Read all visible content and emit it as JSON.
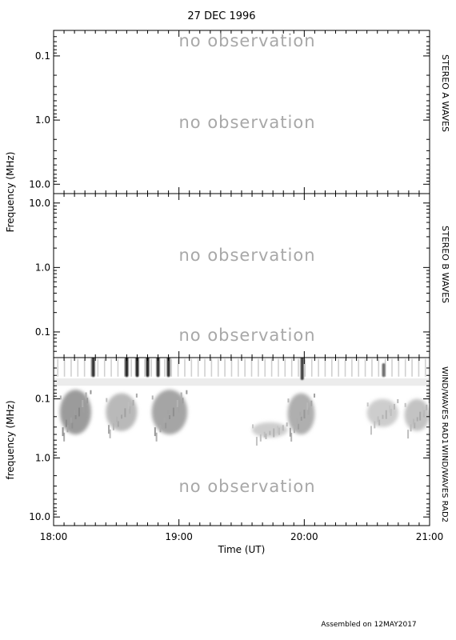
{
  "title": "27 DEC 1996",
  "footer": "Assembled on 12MAY2017",
  "no_observation_label": "no observation",
  "colors": {
    "axis": "#000000",
    "no_observation": "#a8a8a8",
    "burst_dark": "#1a1a1a",
    "burst_light": "#d6d6d6"
  },
  "chart_data": [
    {
      "type": "heatmap",
      "title": "",
      "side_label": "STEREO A WAVES",
      "ylabel": "Frequency (MHz)",
      "yscale": "log",
      "y_inverted": true,
      "ylim": [
        14.0,
        0.04
      ],
      "yticks": [
        "0.1",
        "1.0",
        "10.0"
      ],
      "xlim": [
        "18:00",
        "21:00"
      ],
      "status": [
        "no observation",
        "no observation"
      ]
    },
    {
      "type": "heatmap",
      "title": "",
      "side_label": "STEREO B WAVES",
      "ylabel": "Frequency (MHz)",
      "yscale": "log",
      "y_inverted": false,
      "ylim": [
        0.04,
        14.0
      ],
      "yticks": [
        "10.0",
        "1.0",
        "0.1"
      ],
      "xlim": [
        "18:00",
        "21:00"
      ],
      "status": [
        "no observation",
        "no observation"
      ]
    },
    {
      "type": "heatmap",
      "title": "",
      "side_labels": [
        "WIND/WAVES RAD1",
        "WIND/WAVES RAD2"
      ],
      "ylabel": "frequency (MHz)",
      "xlabel": "Time (UT)",
      "yscale": "log",
      "y_inverted": true,
      "ylim": [
        14.0,
        0.02
      ],
      "yticks": [
        "0.1",
        "1.0",
        "10.0"
      ],
      "xlim": [
        "18:00",
        "21:00"
      ],
      "xticks": [
        "18:00",
        "19:00",
        "20:00",
        "21:00"
      ],
      "status": [
        "no observation"
      ],
      "bursts": [
        {
          "time": "18:19",
          "fmin": 0.02,
          "fmax": 0.04,
          "intensity": 0.85
        },
        {
          "time": "18:35",
          "fmin": 0.02,
          "fmax": 0.04,
          "intensity": 0.9
        },
        {
          "time": "18:40",
          "fmin": 0.02,
          "fmax": 0.04,
          "intensity": 0.9
        },
        {
          "time": "18:45",
          "fmin": 0.02,
          "fmax": 0.04,
          "intensity": 0.9
        },
        {
          "time": "18:50",
          "fmin": 0.02,
          "fmax": 0.04,
          "intensity": 0.85
        },
        {
          "time": "18:55",
          "fmin": 0.02,
          "fmax": 0.04,
          "intensity": 0.85
        },
        {
          "time": "19:59",
          "fmin": 0.02,
          "fmax": 0.045,
          "intensity": 0.8
        },
        {
          "time": "20:38",
          "fmin": 0.03,
          "fmax": 0.04,
          "intensity": 0.6
        }
      ],
      "diffuse_emission": [
        {
          "t_start": "18:03",
          "t_end": "18:18",
          "fmin": 0.07,
          "fmax": 0.4,
          "intensity": 0.5
        },
        {
          "t_start": "18:25",
          "t_end": "18:40",
          "fmin": 0.08,
          "fmax": 0.35,
          "intensity": 0.35
        },
        {
          "t_start": "18:47",
          "t_end": "19:04",
          "fmin": 0.07,
          "fmax": 0.4,
          "intensity": 0.45
        },
        {
          "t_start": "19:35",
          "t_end": "19:52",
          "fmin": 0.25,
          "fmax": 0.45,
          "intensity": 0.25
        },
        {
          "t_start": "19:52",
          "t_end": "20:05",
          "fmin": 0.08,
          "fmax": 0.4,
          "intensity": 0.4
        },
        {
          "t_start": "20:30",
          "t_end": "20:45",
          "fmin": 0.1,
          "fmax": 0.3,
          "intensity": 0.25
        },
        {
          "t_start": "20:48",
          "t_end": "21:00",
          "fmin": 0.1,
          "fmax": 0.35,
          "intensity": 0.3
        }
      ]
    }
  ]
}
